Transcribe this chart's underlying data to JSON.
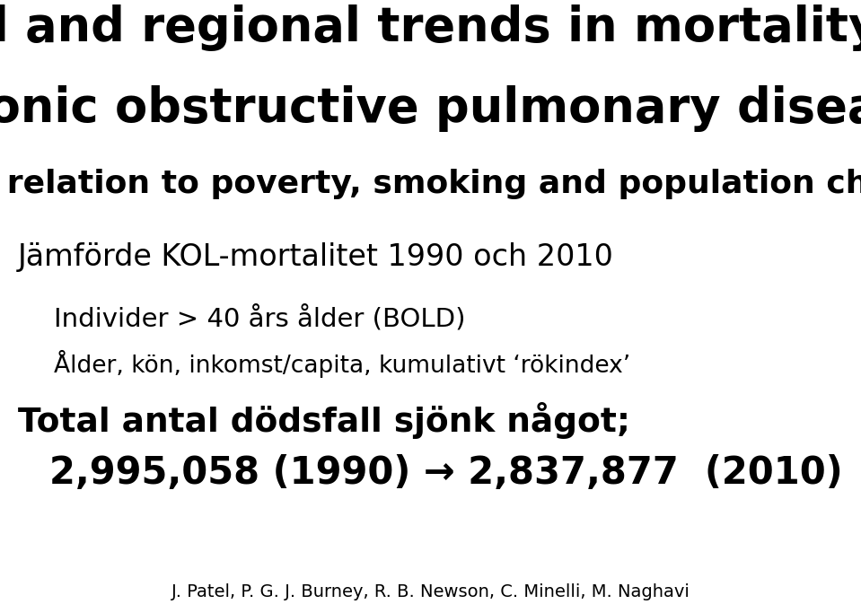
{
  "background_color": "#ffffff",
  "title_line1": "Global and regional trends in mortality from",
  "title_line2": "chronic obstructive pulmonary disease:",
  "subtitle": "Their relation to poverty, smoking and population change",
  "section_header": "Jämförde KOL-mortalitet 1990 och 2010",
  "bullet1": "Individer > 40 års ålder (BOLD)",
  "bullet2": "Ålder, kön, inkomst/capita, kumulativt ‘rökindex’",
  "total_line1": "Total antal dödsfall sjönk något;",
  "total_line2": "2,995,058 (1990) → 2,837,877  (2010)",
  "footer": "J. Patel, P. G. J. Burney, R. B. Newson, C. Minelli, M. Naghavi",
  "title_fontsize": 38,
  "subtitle_fontsize": 26,
  "section_fontsize": 24,
  "bullet1_fontsize": 21,
  "bullet2_fontsize": 19,
  "total1_fontsize": 27,
  "total2_fontsize": 30,
  "footer_fontsize": 14,
  "fig_width": 9.59,
  "fig_height": 6.83,
  "dpi": 100
}
